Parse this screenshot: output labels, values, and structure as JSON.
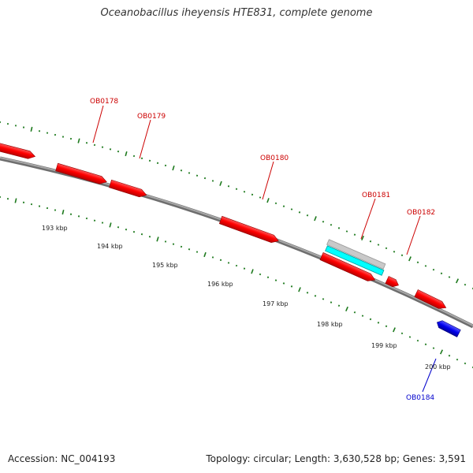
{
  "title": "Oceanobacillus iheyensis HTE831, complete genome",
  "footer": {
    "accession": "Accession: NC_004193",
    "summary": "Topology: circular; Length: 3,630,528 bp; Genes: 3,591"
  },
  "colors": {
    "forward_gene": "#ff0000",
    "reverse_gene": "#0000ee",
    "gray_feature": "#c8c8c8",
    "cyan_feature": "#00ffff",
    "tick": "#1e7a1e",
    "backbone": "#888888",
    "forward_label": "#cc0000",
    "reverse_label": "#0000cc"
  },
  "ruler": {
    "labels": [
      "193 kbp",
      "194 kbp",
      "195 kbp",
      "196 kbp",
      "197 kbp",
      "198 kbp",
      "199 kbp",
      "200 kbp"
    ]
  },
  "genes": [
    {
      "label": "OB0178",
      "color": "red",
      "strand": "forward"
    },
    {
      "label": "OB0179",
      "color": "red",
      "strand": "forward"
    },
    {
      "label": "OB0180",
      "color": "red",
      "strand": "forward"
    },
    {
      "label": "OB0181",
      "color": "red",
      "strand": "forward"
    },
    {
      "label": "OB0182",
      "color": "red",
      "strand": "forward"
    },
    {
      "label": "OB0184",
      "color": "blue",
      "strand": "reverse"
    }
  ]
}
